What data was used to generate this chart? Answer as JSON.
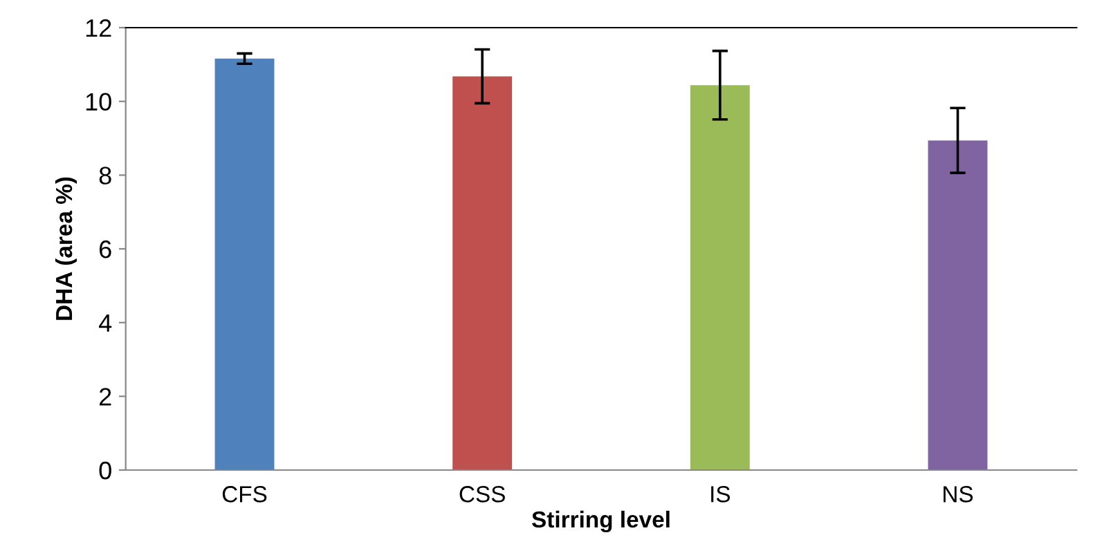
{
  "chart_data": {
    "type": "bar",
    "xlabel": "Stirring level",
    "ylabel": "DHA (area %)",
    "categories": [
      "CFS",
      "CSS",
      "IS",
      "NS"
    ],
    "values": [
      11.16,
      10.68,
      10.44,
      8.94
    ],
    "errors": [
      0.14,
      0.73,
      0.93,
      0.88
    ],
    "colors": [
      "#4f81bd",
      "#c0504d",
      "#9bbb59",
      "#8064a2"
    ],
    "ylim": [
      0,
      12
    ],
    "yticks": [
      0,
      2,
      4,
      6,
      8,
      10,
      12
    ],
    "grid": false,
    "legend": false
  }
}
